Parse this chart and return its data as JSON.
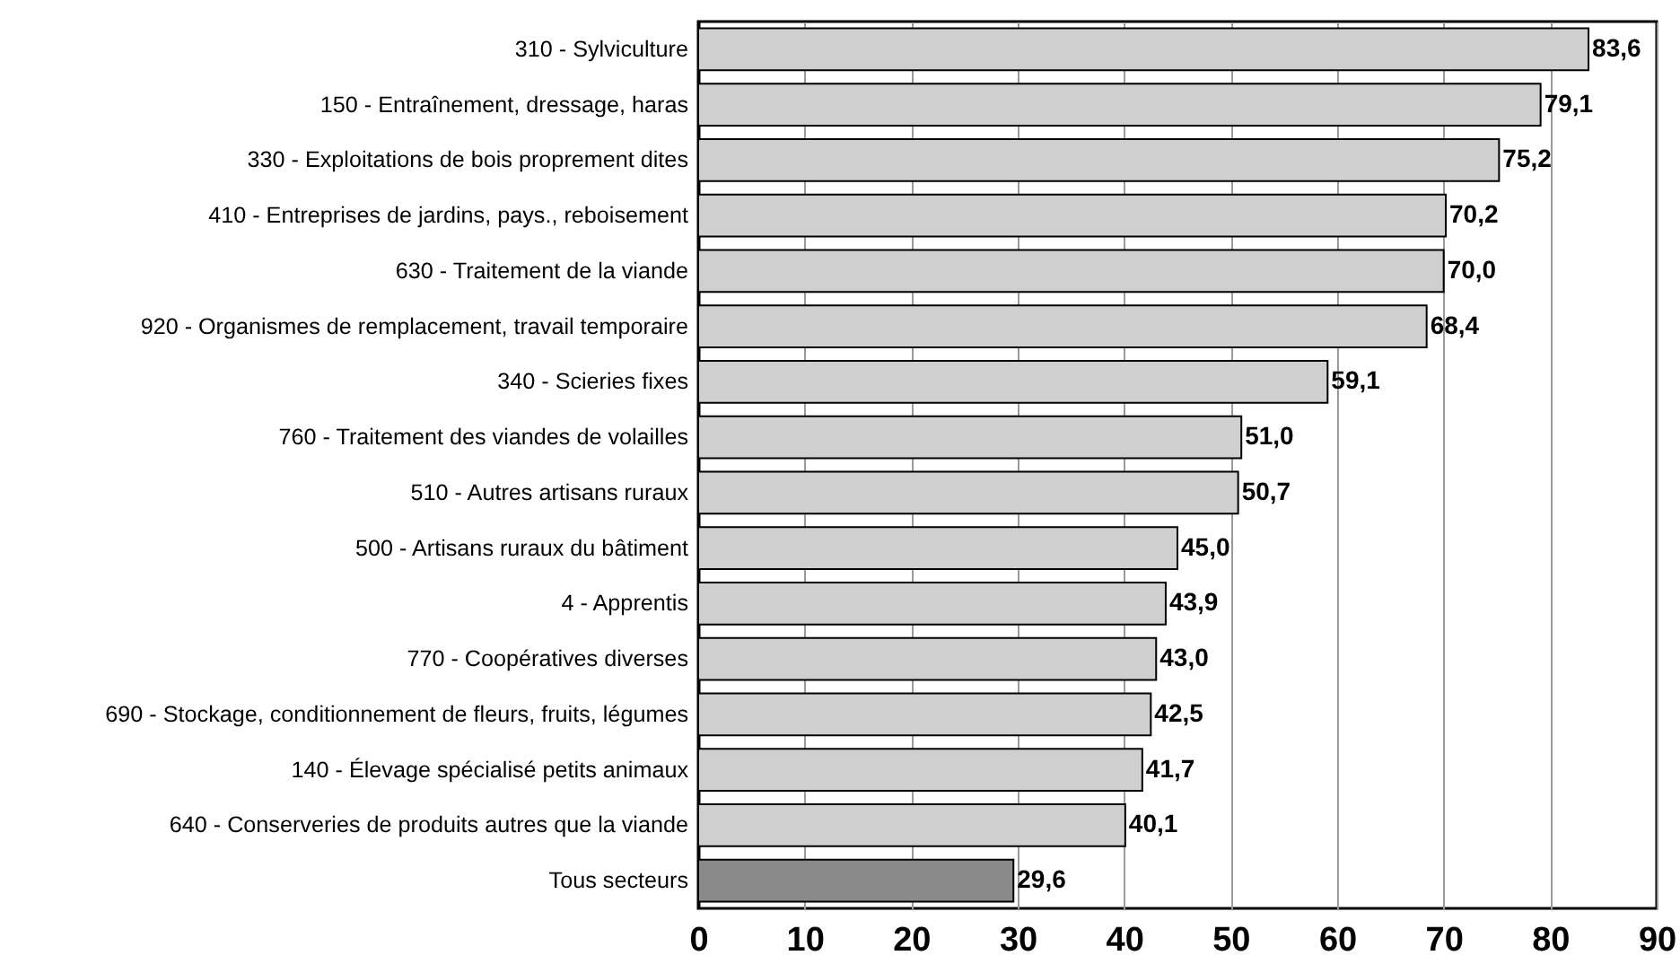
{
  "chart_data": {
    "type": "bar",
    "orientation": "horizontal",
    "categories": [
      "310 - Sylviculture",
      "150 - Entraînement, dressage, haras",
      "330 - Exploitations de bois proprement dites",
      "410 - Entreprises de jardins, pays., reboisement",
      "630 - Traitement de la viande",
      "920 - Organismes de remplacement, travail temporaire",
      "340 - Scieries fixes",
      "760 - Traitement des viandes de volailles",
      "510 - Autres artisans ruraux",
      "500 - Artisans ruraux du bâtiment",
      "4 - Apprentis",
      "770 - Coopératives diverses",
      "690 - Stockage, conditionnement de fleurs, fruits, légumes",
      "140 - Élevage spécialisé petits animaux",
      "640 - Conserveries de produits autres que la viande",
      "Tous secteurs"
    ],
    "values": [
      83.6,
      79.1,
      75.2,
      70.2,
      70.0,
      68.4,
      59.1,
      51.0,
      50.7,
      45.0,
      43.9,
      43.0,
      42.5,
      41.7,
      40.1,
      29.6
    ],
    "value_labels": [
      "83,6",
      "79,1",
      "75,2",
      "70,2",
      "70,0",
      "68,4",
      "59,1",
      "51,0",
      "50,7",
      "45,0",
      "43,9",
      "43,0",
      "42,5",
      "41,7",
      "40,1",
      "29,6"
    ],
    "colors": [
      "#cfcfcf",
      "#cfcfcf",
      "#cfcfcf",
      "#cfcfcf",
      "#cfcfcf",
      "#cfcfcf",
      "#cfcfcf",
      "#cfcfcf",
      "#cfcfcf",
      "#cfcfcf",
      "#cfcfcf",
      "#cfcfcf",
      "#cfcfcf",
      "#cfcfcf",
      "#cfcfcf",
      "#8a8a8a"
    ],
    "xlim": [
      0,
      90
    ],
    "xticks": [
      0,
      10,
      20,
      30,
      40,
      50,
      60,
      70,
      80,
      90
    ],
    "grid": "x"
  }
}
